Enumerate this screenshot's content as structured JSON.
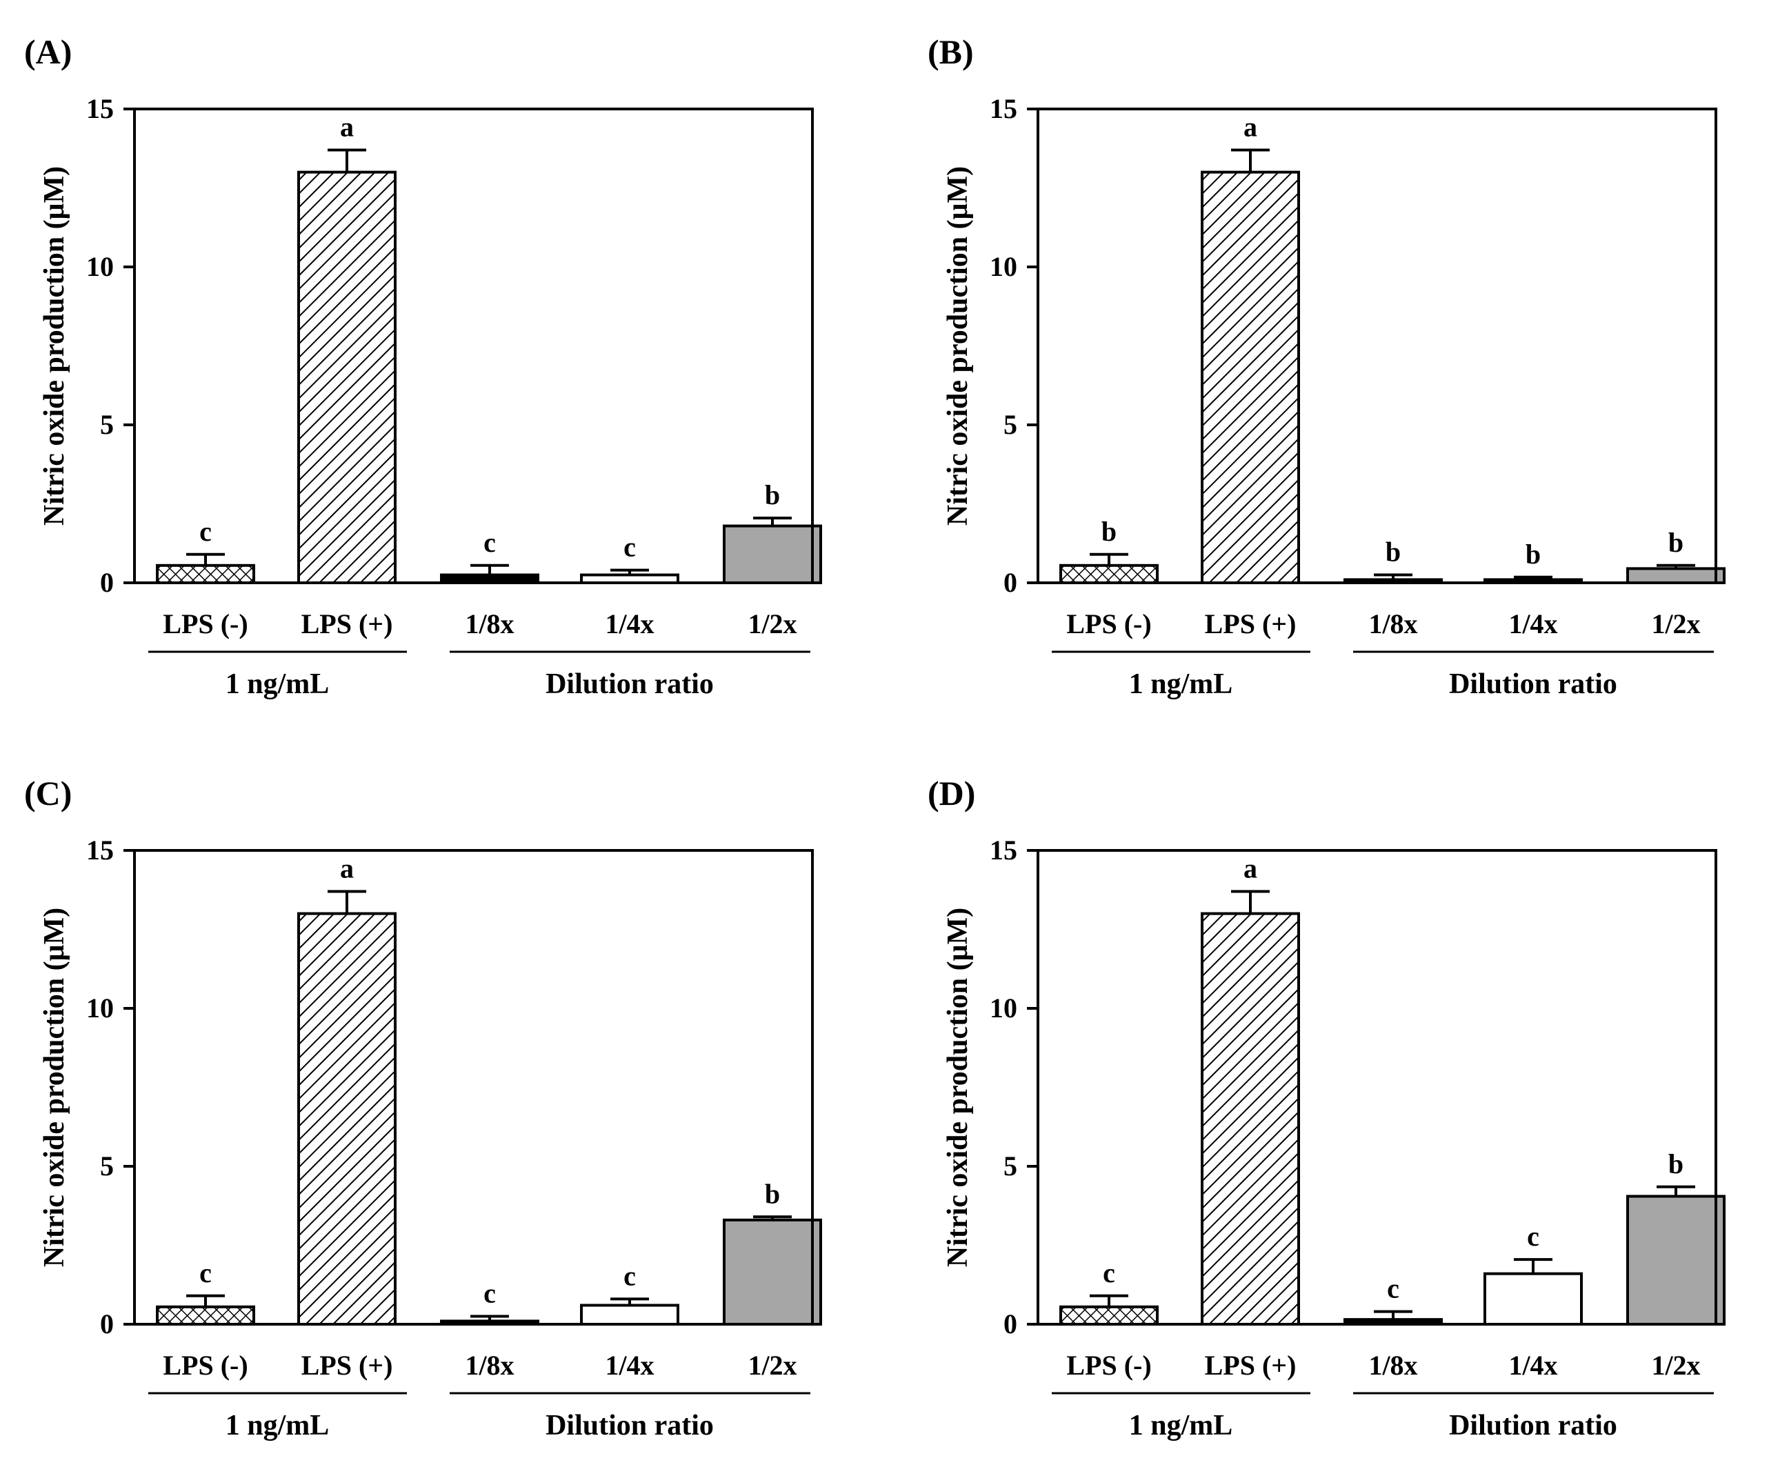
{
  "figure": {
    "y_axis_label": "Nitric oxide production (μM)",
    "group_labels": {
      "control": "1 ng/mL",
      "dilution": "Dilution ratio"
    },
    "colors": {
      "bar_dark": "#000000",
      "bar_white": "#ffffff",
      "bar_gray": "#a6a6a6",
      "hatch": "#000000"
    }
  },
  "chart_data": [
    {
      "type": "bar",
      "panel": "(A)",
      "categories": [
        "LPS (-)",
        "LPS (+)",
        "1/8x",
        "1/4x",
        "1/2x"
      ],
      "values": [
        0.55,
        13.0,
        0.25,
        0.25,
        1.8
      ],
      "errors": [
        0.35,
        0.7,
        0.3,
        0.15,
        0.25
      ],
      "significance": [
        "c",
        "a",
        "c",
        "c",
        "b"
      ],
      "fills": [
        "crosshatch",
        "diagonal",
        "#000000",
        "#ffffff",
        "#a6a6a6"
      ],
      "xlabel": "",
      "ylabel": "Nitric oxide production (μM)",
      "ylim": [
        0,
        15
      ],
      "yticks": [
        0,
        5,
        10,
        15
      ]
    },
    {
      "type": "bar",
      "panel": "(B)",
      "categories": [
        "LPS (-)",
        "LPS (+)",
        "1/8x",
        "1/4x",
        "1/2x"
      ],
      "values": [
        0.55,
        13.0,
        0.1,
        0.1,
        0.45
      ],
      "errors": [
        0.35,
        0.7,
        0.15,
        0.08,
        0.1
      ],
      "significance": [
        "b",
        "a",
        "b",
        "b",
        "b"
      ],
      "fills": [
        "crosshatch",
        "diagonal",
        "#000000",
        "#000000",
        "#a6a6a6"
      ],
      "xlabel": "",
      "ylabel": "Nitric oxide production (μM)",
      "ylim": [
        0,
        15
      ],
      "yticks": [
        0,
        5,
        10,
        15
      ]
    },
    {
      "type": "bar",
      "panel": "(C)",
      "categories": [
        "LPS (-)",
        "LPS (+)",
        "1/8x",
        "1/4x",
        "1/2x"
      ],
      "values": [
        0.55,
        13.0,
        0.1,
        0.6,
        3.3
      ],
      "errors": [
        0.35,
        0.7,
        0.15,
        0.2,
        0.1
      ],
      "significance": [
        "c",
        "a",
        "c",
        "c",
        "b"
      ],
      "fills": [
        "crosshatch",
        "diagonal",
        "#000000",
        "#ffffff",
        "#a6a6a6"
      ],
      "xlabel": "",
      "ylabel": "Nitric oxide production (μM)",
      "ylim": [
        0,
        15
      ],
      "yticks": [
        0,
        5,
        10,
        15
      ]
    },
    {
      "type": "bar",
      "panel": "(D)",
      "categories": [
        "LPS (-)",
        "LPS (+)",
        "1/8x",
        "1/4x",
        "1/2x"
      ],
      "values": [
        0.55,
        13.0,
        0.15,
        1.6,
        4.05
      ],
      "errors": [
        0.35,
        0.7,
        0.25,
        0.45,
        0.3
      ],
      "significance": [
        "c",
        "a",
        "c",
        "c",
        "b"
      ],
      "fills": [
        "crosshatch",
        "diagonal",
        "#000000",
        "#ffffff",
        "#a6a6a6"
      ],
      "xlabel": "",
      "ylabel": "Nitric oxide production (μM)",
      "ylim": [
        0,
        15
      ],
      "yticks": [
        0,
        5,
        10,
        15
      ]
    }
  ]
}
